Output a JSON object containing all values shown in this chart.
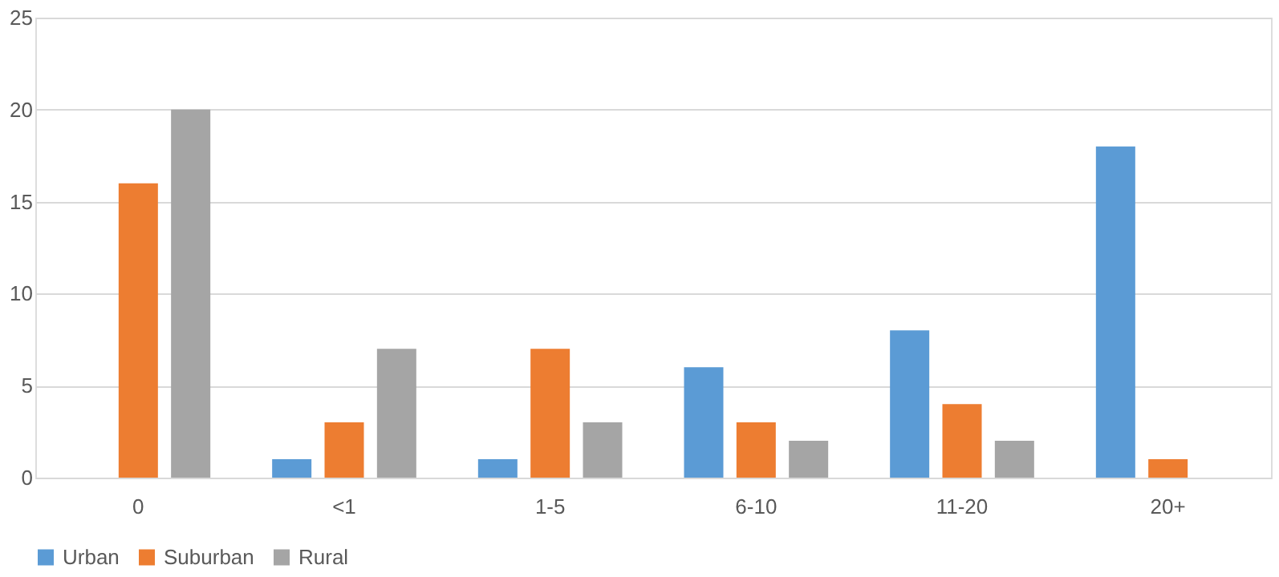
{
  "chart_data": {
    "type": "bar",
    "categories": [
      "0",
      "<1",
      "1-5",
      "6-10",
      "11-20",
      "20+"
    ],
    "series": [
      {
        "name": "Urban",
        "color": "#5b9bd5",
        "values": [
          0,
          1,
          1,
          6,
          8,
          18
        ]
      },
      {
        "name": "Suburban",
        "color": "#ed7d31",
        "values": [
          16,
          3,
          7,
          3,
          4,
          1
        ]
      },
      {
        "name": "Rural",
        "color": "#a5a5a5",
        "values": [
          20,
          7,
          3,
          2,
          2,
          0
        ]
      }
    ],
    "ylim": [
      0,
      25
    ],
    "yticks": [
      0,
      5,
      10,
      15,
      20,
      25
    ],
    "grid": "y",
    "legend": "bottom"
  }
}
